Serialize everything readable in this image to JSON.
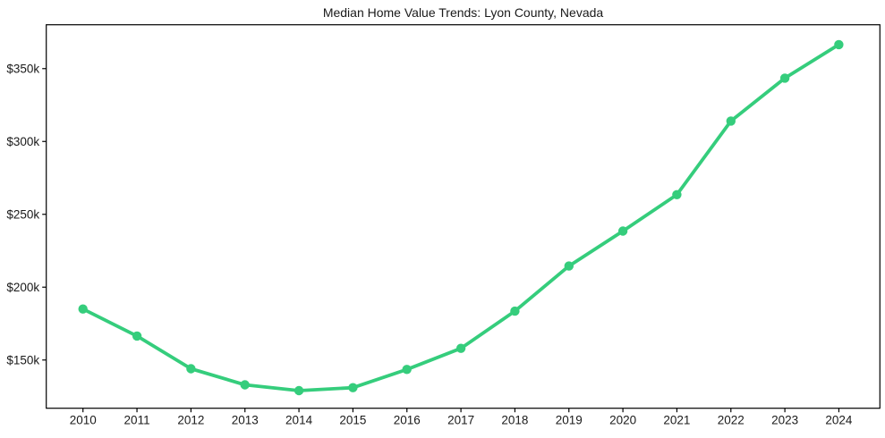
{
  "colors": {
    "line": "#35cd7c",
    "axis": "#000000",
    "text": "#1a1a1a",
    "background": "#ffffff"
  },
  "chart_data": {
    "type": "line",
    "title": "Median Home Value Trends: Lyon County, Nevada",
    "xlabel": "",
    "ylabel": "",
    "x": [
      2010,
      2011,
      2012,
      2013,
      2014,
      2015,
      2016,
      2017,
      2018,
      2019,
      2020,
      2021,
      2022,
      2023,
      2024
    ],
    "series": [
      {
        "name": "Median Home Value",
        "marker": "circle",
        "values": [
          185000,
          166500,
          144000,
          133000,
          129000,
          131000,
          143500,
          158000,
          183500,
          214500,
          238500,
          263500,
          314000,
          343500,
          366500
        ]
      }
    ],
    "xticks": [
      {
        "value": 2010,
        "label": "2010"
      },
      {
        "value": 2011,
        "label": "2011"
      },
      {
        "value": 2012,
        "label": "2012"
      },
      {
        "value": 2013,
        "label": "2013"
      },
      {
        "value": 2014,
        "label": "2014"
      },
      {
        "value": 2015,
        "label": "2015"
      },
      {
        "value": 2016,
        "label": "2016"
      },
      {
        "value": 2017,
        "label": "2017"
      },
      {
        "value": 2018,
        "label": "2018"
      },
      {
        "value": 2019,
        "label": "2019"
      },
      {
        "value": 2020,
        "label": "2020"
      },
      {
        "value": 2021,
        "label": "2021"
      },
      {
        "value": 2022,
        "label": "2022"
      },
      {
        "value": 2023,
        "label": "2023"
      },
      {
        "value": 2024,
        "label": "2024"
      }
    ],
    "yticks": [
      {
        "value": 150000,
        "label": "$150k"
      },
      {
        "value": 200000,
        "label": "$200k"
      },
      {
        "value": 250000,
        "label": "$250k"
      },
      {
        "value": 300000,
        "label": "$300k"
      },
      {
        "value": 350000,
        "label": "$350k"
      }
    ],
    "xlim": [
      2009.32,
      2024.76
    ],
    "ylim": [
      116900,
      380100
    ],
    "grid": false,
    "legend": false
  }
}
